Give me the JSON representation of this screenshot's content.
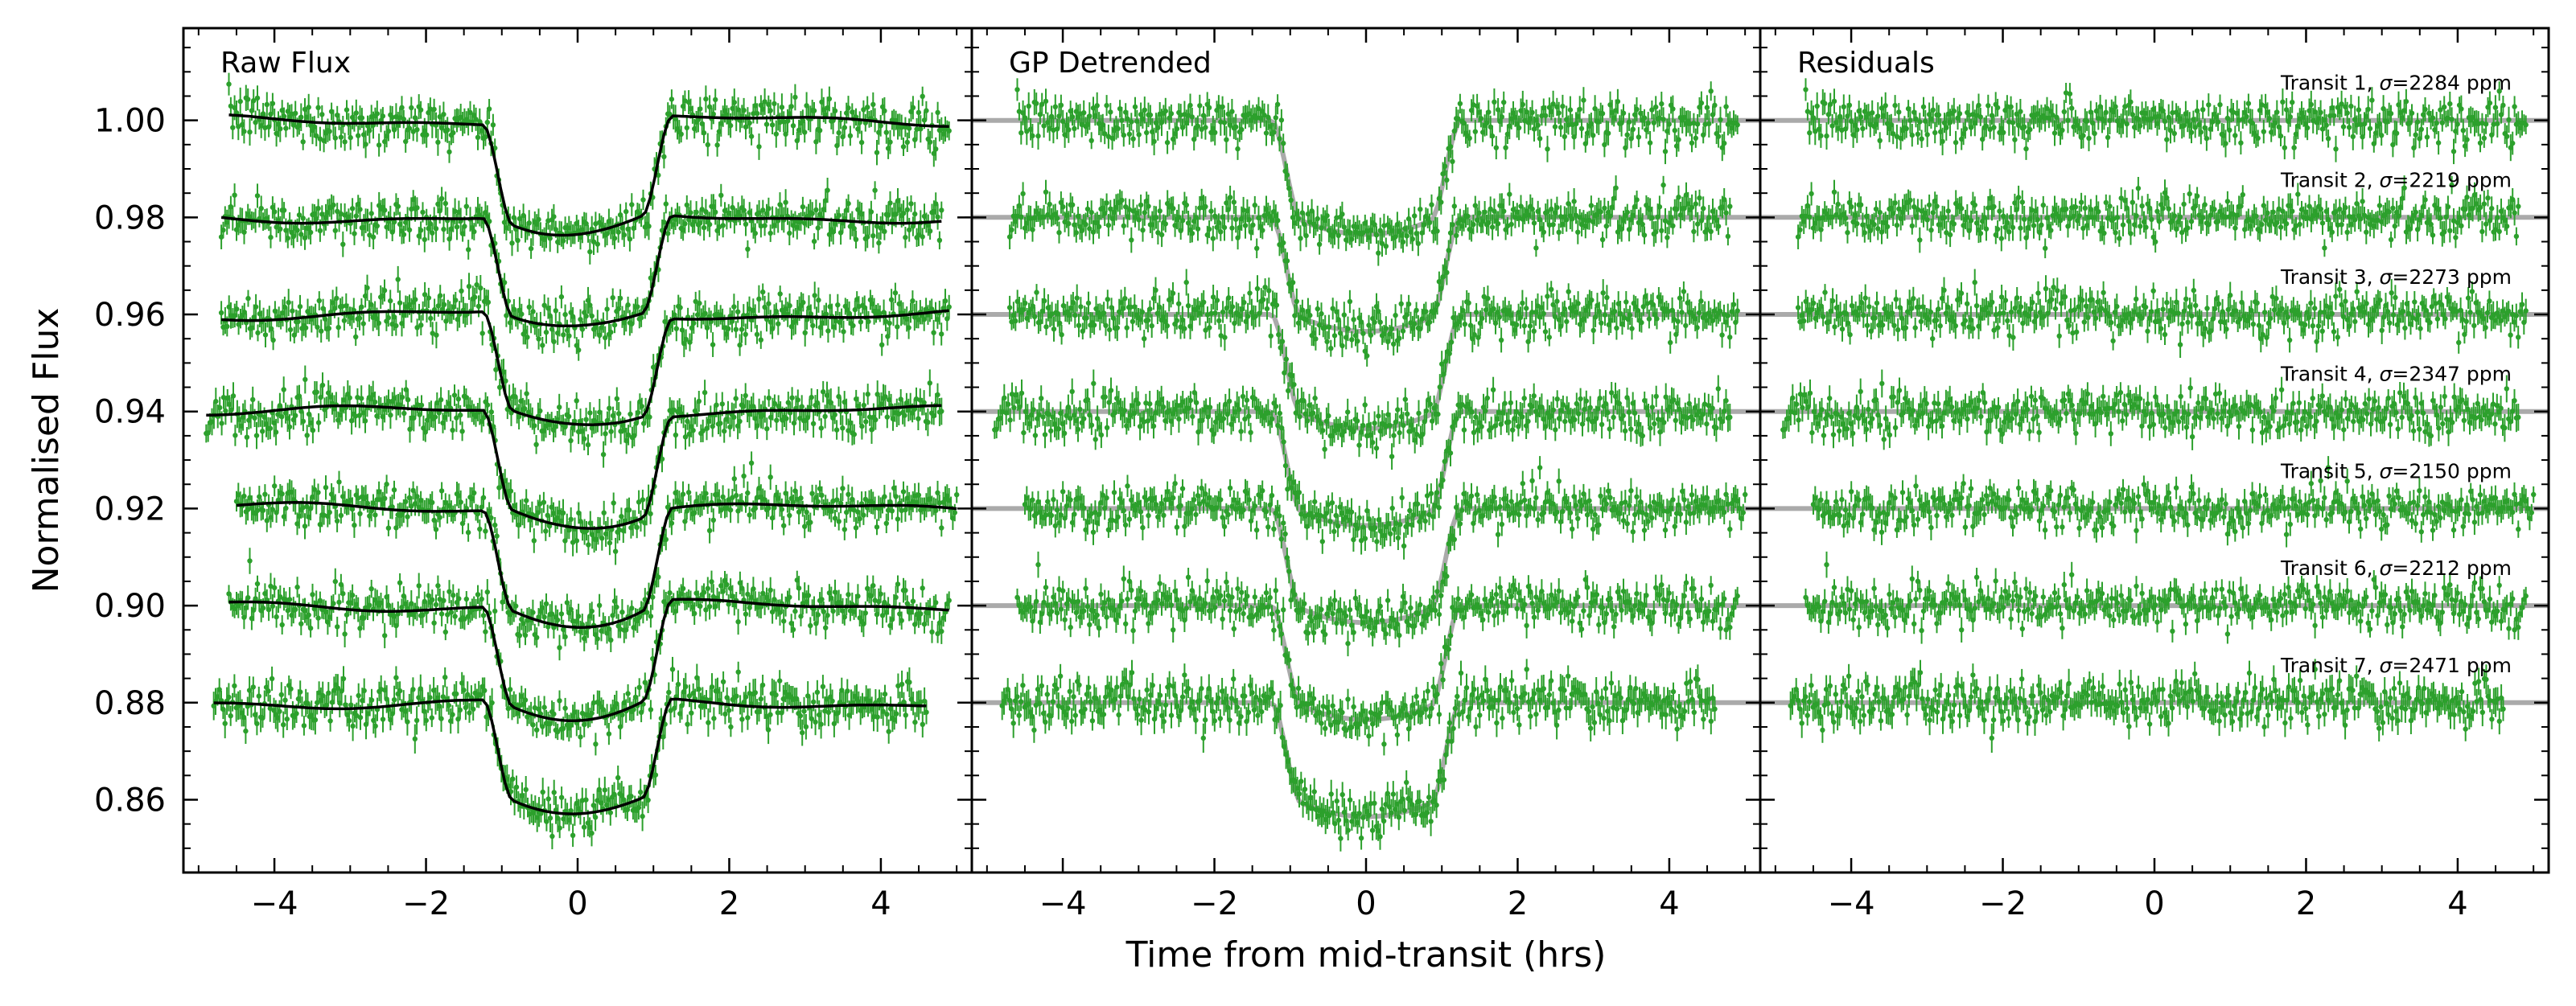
{
  "figure": {
    "ylabel": "Normalised Flux",
    "xlabel": "Time from mid-transit (hrs)"
  },
  "colors": {
    "data": "#2ca02c",
    "raw_model": "#000000",
    "gp_model": "#aaaaaa",
    "residual_baseline": "#aaaaaa",
    "axes": "#000000"
  },
  "chart_data": {
    "type": "scatter",
    "panels": [
      {
        "title": "Raw Flux",
        "model": "transit model (black line)"
      },
      {
        "title": "GP Detrended",
        "model": "transit model (grey line)"
      },
      {
        "title": "Residuals",
        "model": "zero baseline (grey line)"
      }
    ],
    "xlim": [
      -5.2,
      5.2
    ],
    "ylim": [
      0.845,
      1.019
    ],
    "xticks": [
      -4,
      -2,
      0,
      2,
      4
    ],
    "xtick_labels": [
      "−4",
      "−2",
      "0",
      "2",
      "4"
    ],
    "yticks": [
      0.86,
      0.88,
      0.9,
      0.92,
      0.94,
      0.96,
      0.98,
      1.0
    ],
    "ytick_labels": [
      "0.86",
      "0.88",
      "0.90",
      "0.92",
      "0.94",
      "0.96",
      "0.98",
      "1.00"
    ],
    "grid": false,
    "transit_shape": {
      "t_ingress_start": -1.25,
      "t_full_start": -0.85,
      "t_full_end": 0.85,
      "t_egress_end": 1.25,
      "depth": 0.0235
    },
    "transits": [
      {
        "label_prefix": "Transit 1, ",
        "sigma_text": "σ",
        "label_suffix": "=2284 ppm",
        "sigma_ppm": 2284,
        "offset": 1.0,
        "t_start": -4.6,
        "t_end": 4.9
      },
      {
        "label_prefix": "Transit 2, ",
        "sigma_text": "σ",
        "label_suffix": "=2219 ppm",
        "sigma_ppm": 2219,
        "offset": 0.98,
        "t_start": -4.7,
        "t_end": 4.8
      },
      {
        "label_prefix": "Transit 3, ",
        "sigma_text": "σ",
        "label_suffix": "=2273 ppm",
        "sigma_ppm": 2273,
        "offset": 0.96,
        "t_start": -4.7,
        "t_end": 4.9
      },
      {
        "label_prefix": "Transit 4, ",
        "sigma_text": "σ",
        "label_suffix": "=2347 ppm",
        "sigma_ppm": 2347,
        "offset": 0.94,
        "t_start": -4.9,
        "t_end": 4.8
      },
      {
        "label_prefix": "Transit 5, ",
        "sigma_text": "σ",
        "label_suffix": "=2150 ppm",
        "sigma_ppm": 2150,
        "offset": 0.92,
        "t_start": -4.5,
        "t_end": 5.0
      },
      {
        "label_prefix": "Transit 6, ",
        "sigma_text": "σ",
        "label_suffix": "=2212 ppm",
        "sigma_ppm": 2212,
        "offset": 0.9,
        "t_start": -4.6,
        "t_end": 4.9
      },
      {
        "label_prefix": "Transit 7, ",
        "sigma_text": "σ",
        "label_suffix": "=2471 ppm",
        "sigma_ppm": 2471,
        "offset": 0.88,
        "t_start": -4.8,
        "t_end": 4.6
      }
    ]
  }
}
